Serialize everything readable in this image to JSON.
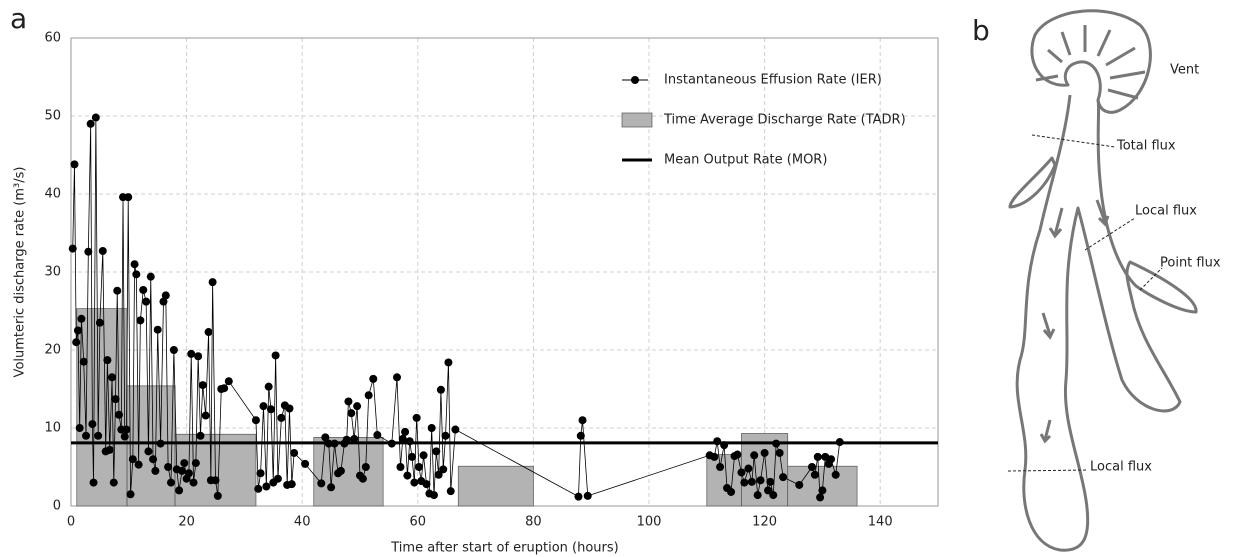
{
  "chart_data": {
    "type": "combo",
    "panel_label": "a",
    "xlabel": "Time after start of eruption (hours)",
    "ylabel": "Volumteric discharge rate (m³/s)",
    "xlim": [
      0,
      150
    ],
    "xticks": [
      0,
      20,
      40,
      60,
      80,
      100,
      120,
      140
    ],
    "ylim": [
      0,
      60
    ],
    "yticks": [
      0,
      10,
      20,
      30,
      40,
      50,
      60
    ],
    "grid": true,
    "legend": "top-right",
    "series": [
      {
        "name": "Instantaneous Effusion Rate (IER)",
        "type": "line",
        "color": "#000000",
        "x": [
          0.3,
          0.6,
          0.9,
          1.2,
          1.5,
          1.8,
          2.2,
          2.6,
          3,
          3.4,
          3.7,
          3.9,
          4.3,
          4.7,
          5,
          5.5,
          6,
          6.3,
          6.7,
          7.1,
          7.4,
          7.7,
          8,
          8.3,
          8.7,
          9,
          9.3,
          9.6,
          9.9,
          10.3,
          10.7,
          11,
          11.3,
          11.7,
          12,
          12.5,
          13,
          13.4,
          13.8,
          14.2,
          14.6,
          15,
          15.5,
          16,
          16.4,
          16.8,
          17.3,
          17.8,
          18.3,
          18.7,
          19.2,
          19.6,
          20,
          20.4,
          20.8,
          21.2,
          21.6,
          22,
          22.4,
          22.8,
          23.3,
          23.8,
          24.2,
          24.5,
          25,
          25.4,
          26,
          26.5,
          27.3,
          32,
          32.4,
          32.8,
          33.3,
          33.8,
          34.2,
          34.6,
          35,
          35.4,
          35.8,
          36.4,
          37,
          37.4,
          37.8,
          38.2,
          38.6,
          40.5,
          43.3,
          44,
          44.6,
          45,
          45.6,
          46.2,
          46.7,
          47.3,
          47.7,
          48,
          48.5,
          49,
          49.5,
          50,
          50.5,
          51,
          51.5,
          52.3,
          53,
          55.5,
          56.4,
          57,
          57.4,
          57.8,
          58.2,
          58.6,
          59,
          59.4,
          59.8,
          60.2,
          60.6,
          61,
          61.5,
          62,
          62.4,
          62.8,
          63.2,
          63.6,
          64,
          64.4,
          64.8,
          65.3,
          65.7,
          66.5,
          87.8,
          88.2,
          88.5,
          89.4,
          110.5,
          111.3,
          111.8,
          112.3,
          113,
          113.5,
          114.2,
          114.8,
          115.3,
          116,
          116.5,
          117.2,
          117.8,
          118.2,
          118.8,
          119.3,
          120,
          120.6,
          121,
          121.5,
          122,
          122.6,
          123.2,
          126,
          128.2,
          128.7,
          129.2,
          129.6,
          130,
          130.5,
          131.1,
          131.5,
          132.3,
          133
        ],
        "values": [
          33,
          43.8,
          21,
          22.5,
          10,
          24,
          18.5,
          9,
          32.6,
          49,
          10.5,
          3,
          49.8,
          9,
          23.5,
          32.7,
          7,
          18.7,
          7.2,
          16.5,
          3,
          13.7,
          27.6,
          11.7,
          9.8,
          39.6,
          8.9,
          9.8,
          39.6,
          1.5,
          6,
          31,
          29.7,
          5.3,
          23.8,
          27.7,
          26.2,
          7,
          29.4,
          6,
          4.5,
          22.6,
          8,
          26.2,
          27,
          5,
          3,
          20,
          4.7,
          2,
          4.5,
          5.5,
          3.5,
          4.2,
          19.5,
          3,
          5.5,
          19.2,
          9,
          15.5,
          11.6,
          22.3,
          3.3,
          28.7,
          3.3,
          1.3,
          15,
          15.1,
          16,
          11,
          2.2,
          4.2,
          12.8,
          2.5,
          15.3,
          12.4,
          3,
          19.3,
          3.5,
          11.3,
          12.9,
          2.7,
          12.5,
          2.8,
          6.8,
          5.4,
          2.9,
          8.8,
          8,
          2.4,
          8,
          4.2,
          4.5,
          8,
          8.5,
          13.4,
          11.9,
          8.6,
          12.8,
          3.9,
          3.5,
          5,
          14.2,
          16.3,
          9.1,
          8,
          16.5,
          5,
          8.6,
          9.5,
          3.9,
          8.3,
          6.3,
          3,
          11.3,
          5,
          3.2,
          6.5,
          2.8,
          1.6,
          10,
          1.4,
          7,
          4,
          14.9,
          4.7,
          9,
          18.4,
          1.9,
          9.8,
          1.2,
          9,
          11,
          1.3,
          6.5,
          6.3,
          8.3,
          5,
          7.8,
          2.3,
          1.8,
          6.4,
          6.6,
          4.3,
          3,
          4.8,
          3.1,
          6.5,
          1.4,
          3.3,
          6.8,
          2,
          3.1,
          1.4,
          8,
          6.8,
          3.7,
          2.7,
          5,
          4,
          6.3,
          1.1,
          2,
          6.3,
          5.4,
          6,
          4,
          8.2
        ]
      },
      {
        "name": "Time Average Discharge Rate (TADR)",
        "type": "bar",
        "color": "#b3b3b3",
        "x_start": [
          1,
          9.7,
          18,
          42,
          67,
          110,
          116,
          124
        ],
        "x_end": [
          9.7,
          18,
          32,
          54,
          80,
          116,
          124,
          136
        ],
        "values": [
          25.3,
          15.4,
          9.2,
          8.8,
          5.1,
          6.6,
          9.3,
          5.1
        ]
      },
      {
        "name": "Mean Output Rate (MOR)",
        "type": "hline",
        "color": "#000000",
        "values": [
          8.1
        ]
      }
    ]
  },
  "panel_b": {
    "label": "b",
    "labels": [
      "Vent",
      "Total flux",
      "Local flux",
      "Point flux",
      "Local flux"
    ]
  }
}
